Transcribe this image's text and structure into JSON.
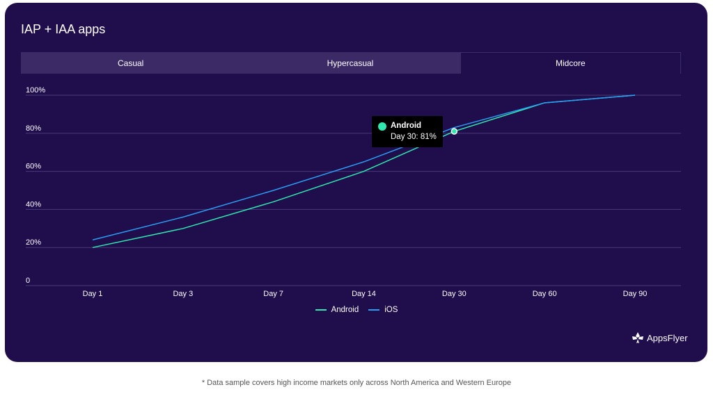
{
  "title": "IAP + IAA apps",
  "tabs": [
    {
      "label": "Casual",
      "active": false
    },
    {
      "label": "Hypercasual",
      "active": false
    },
    {
      "label": "Midcore",
      "active": true
    }
  ],
  "chart_data": {
    "type": "line",
    "categories": [
      "Day 1",
      "Day 3",
      "Day 7",
      "Day 14",
      "Day 30",
      "Day 60",
      "Day 90"
    ],
    "y_ticks": [
      "0",
      "20%",
      "40%",
      "60%",
      "80%",
      "100%"
    ],
    "ylim": [
      0,
      100
    ],
    "grid": true,
    "legend_position": "bottom-center",
    "series": [
      {
        "name": "Android",
        "color": "#2ee8b0",
        "values": [
          20,
          30,
          44,
          60,
          81,
          96,
          100
        ]
      },
      {
        "name": "iOS",
        "color": "#2a9df4",
        "values": [
          24,
          36,
          50,
          65,
          83,
          96,
          100
        ]
      }
    ],
    "tooltip": {
      "series": "Android",
      "text": "Day 30: 81%",
      "category": "Day 30",
      "value": 81
    }
  },
  "logo": {
    "text": "AppsFlyer",
    "icon": "appsflyer-logo-icon"
  },
  "footnote": "* Data sample covers high income markets only across North America and Western Europe"
}
